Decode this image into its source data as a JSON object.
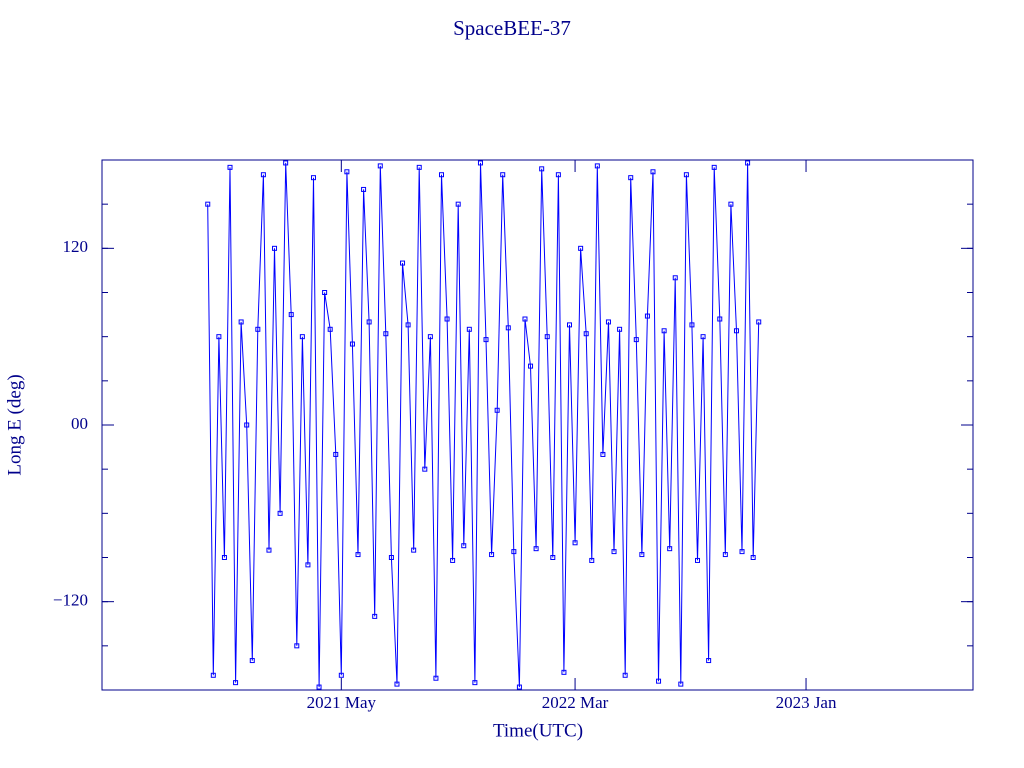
{
  "chart_data": {
    "type": "line",
    "title": "SpaceBEE-37",
    "x_label": "Time(UTC)",
    "y_label": "Long E (deg)",
    "x": [
      2020.85,
      2020.87,
      2020.89,
      2020.91,
      2020.93,
      2020.95,
      2020.97,
      2020.99,
      2021.01,
      2021.03,
      2021.05,
      2021.07,
      2021.09,
      2021.11,
      2021.13,
      2021.15,
      2021.17,
      2021.19,
      2021.21,
      2021.23,
      2021.25,
      2021.27,
      2021.29,
      2021.31,
      2021.33,
      2021.35,
      2021.37,
      2021.39,
      2021.41,
      2021.43,
      2021.45,
      2021.47,
      2021.49,
      2021.51,
      2021.53,
      2021.55,
      2021.57,
      2021.59,
      2021.61,
      2021.63,
      2021.65,
      2021.67,
      2021.69,
      2021.71,
      2021.73,
      2021.75,
      2021.77,
      2021.79,
      2021.81,
      2021.83,
      2021.85,
      2021.87,
      2021.89,
      2021.91,
      2021.93,
      2021.95,
      2021.97,
      2021.99,
      2022.01,
      2022.03,
      2022.05,
      2022.07,
      2022.09,
      2022.11,
      2022.13,
      2022.15,
      2022.17,
      2022.19,
      2022.21,
      2022.23,
      2022.25,
      2022.27,
      2022.29,
      2022.31,
      2022.33,
      2022.35,
      2022.37,
      2022.39,
      2022.41,
      2022.43,
      2022.45,
      2022.47,
      2022.49,
      2022.51,
      2022.53,
      2022.55,
      2022.57,
      2022.59,
      2022.61,
      2022.63,
      2022.65,
      2022.67,
      2022.69,
      2022.71,
      2022.73,
      2022.75,
      2022.77,
      2022.79,
      2022.81,
      2022.83
    ],
    "series": [
      {
        "color": "#0000ff",
        "values": [
          150,
          -170,
          60,
          -90,
          175,
          -175,
          70,
          0,
          -160,
          65,
          170,
          -85,
          120,
          -60,
          178,
          75,
          -150,
          60,
          -95,
          168,
          -178,
          90,
          65,
          -20,
          -170,
          172,
          55,
          -88,
          160,
          70,
          -130,
          176,
          62,
          -90,
          -176,
          110,
          68,
          -85,
          175,
          -30,
          60,
          -172,
          170,
          72,
          -92,
          150,
          -82,
          65,
          -175,
          178,
          58,
          -88,
          10,
          170,
          66,
          -86,
          -178,
          72,
          40,
          -84,
          174,
          60,
          -90,
          170,
          -168,
          68,
          -80,
          120,
          62,
          -92,
          176,
          -20,
          70,
          -86,
          65,
          -170,
          168,
          58,
          -88,
          74,
          172,
          -174,
          64,
          -84,
          100,
          -176,
          170,
          68,
          -92,
          60,
          -160,
          175,
          72,
          -88,
          150,
          64,
          -86,
          178,
          -90,
          70
        ]
      }
    ],
    "xlim": [
      2020.47,
      2023.6
    ],
    "xticks": [
      {
        "value": 2021.33,
        "label": "2021 May"
      },
      {
        "value": 2022.17,
        "label": "2022 Mar"
      },
      {
        "value": 2023.0,
        "label": "2023 Jan"
      }
    ],
    "ylim": [
      -180,
      180
    ],
    "yticks": [
      {
        "value": -120,
        "label": "−120"
      },
      {
        "value": 0,
        "label": "00"
      },
      120
    ],
    "grid": false
  }
}
